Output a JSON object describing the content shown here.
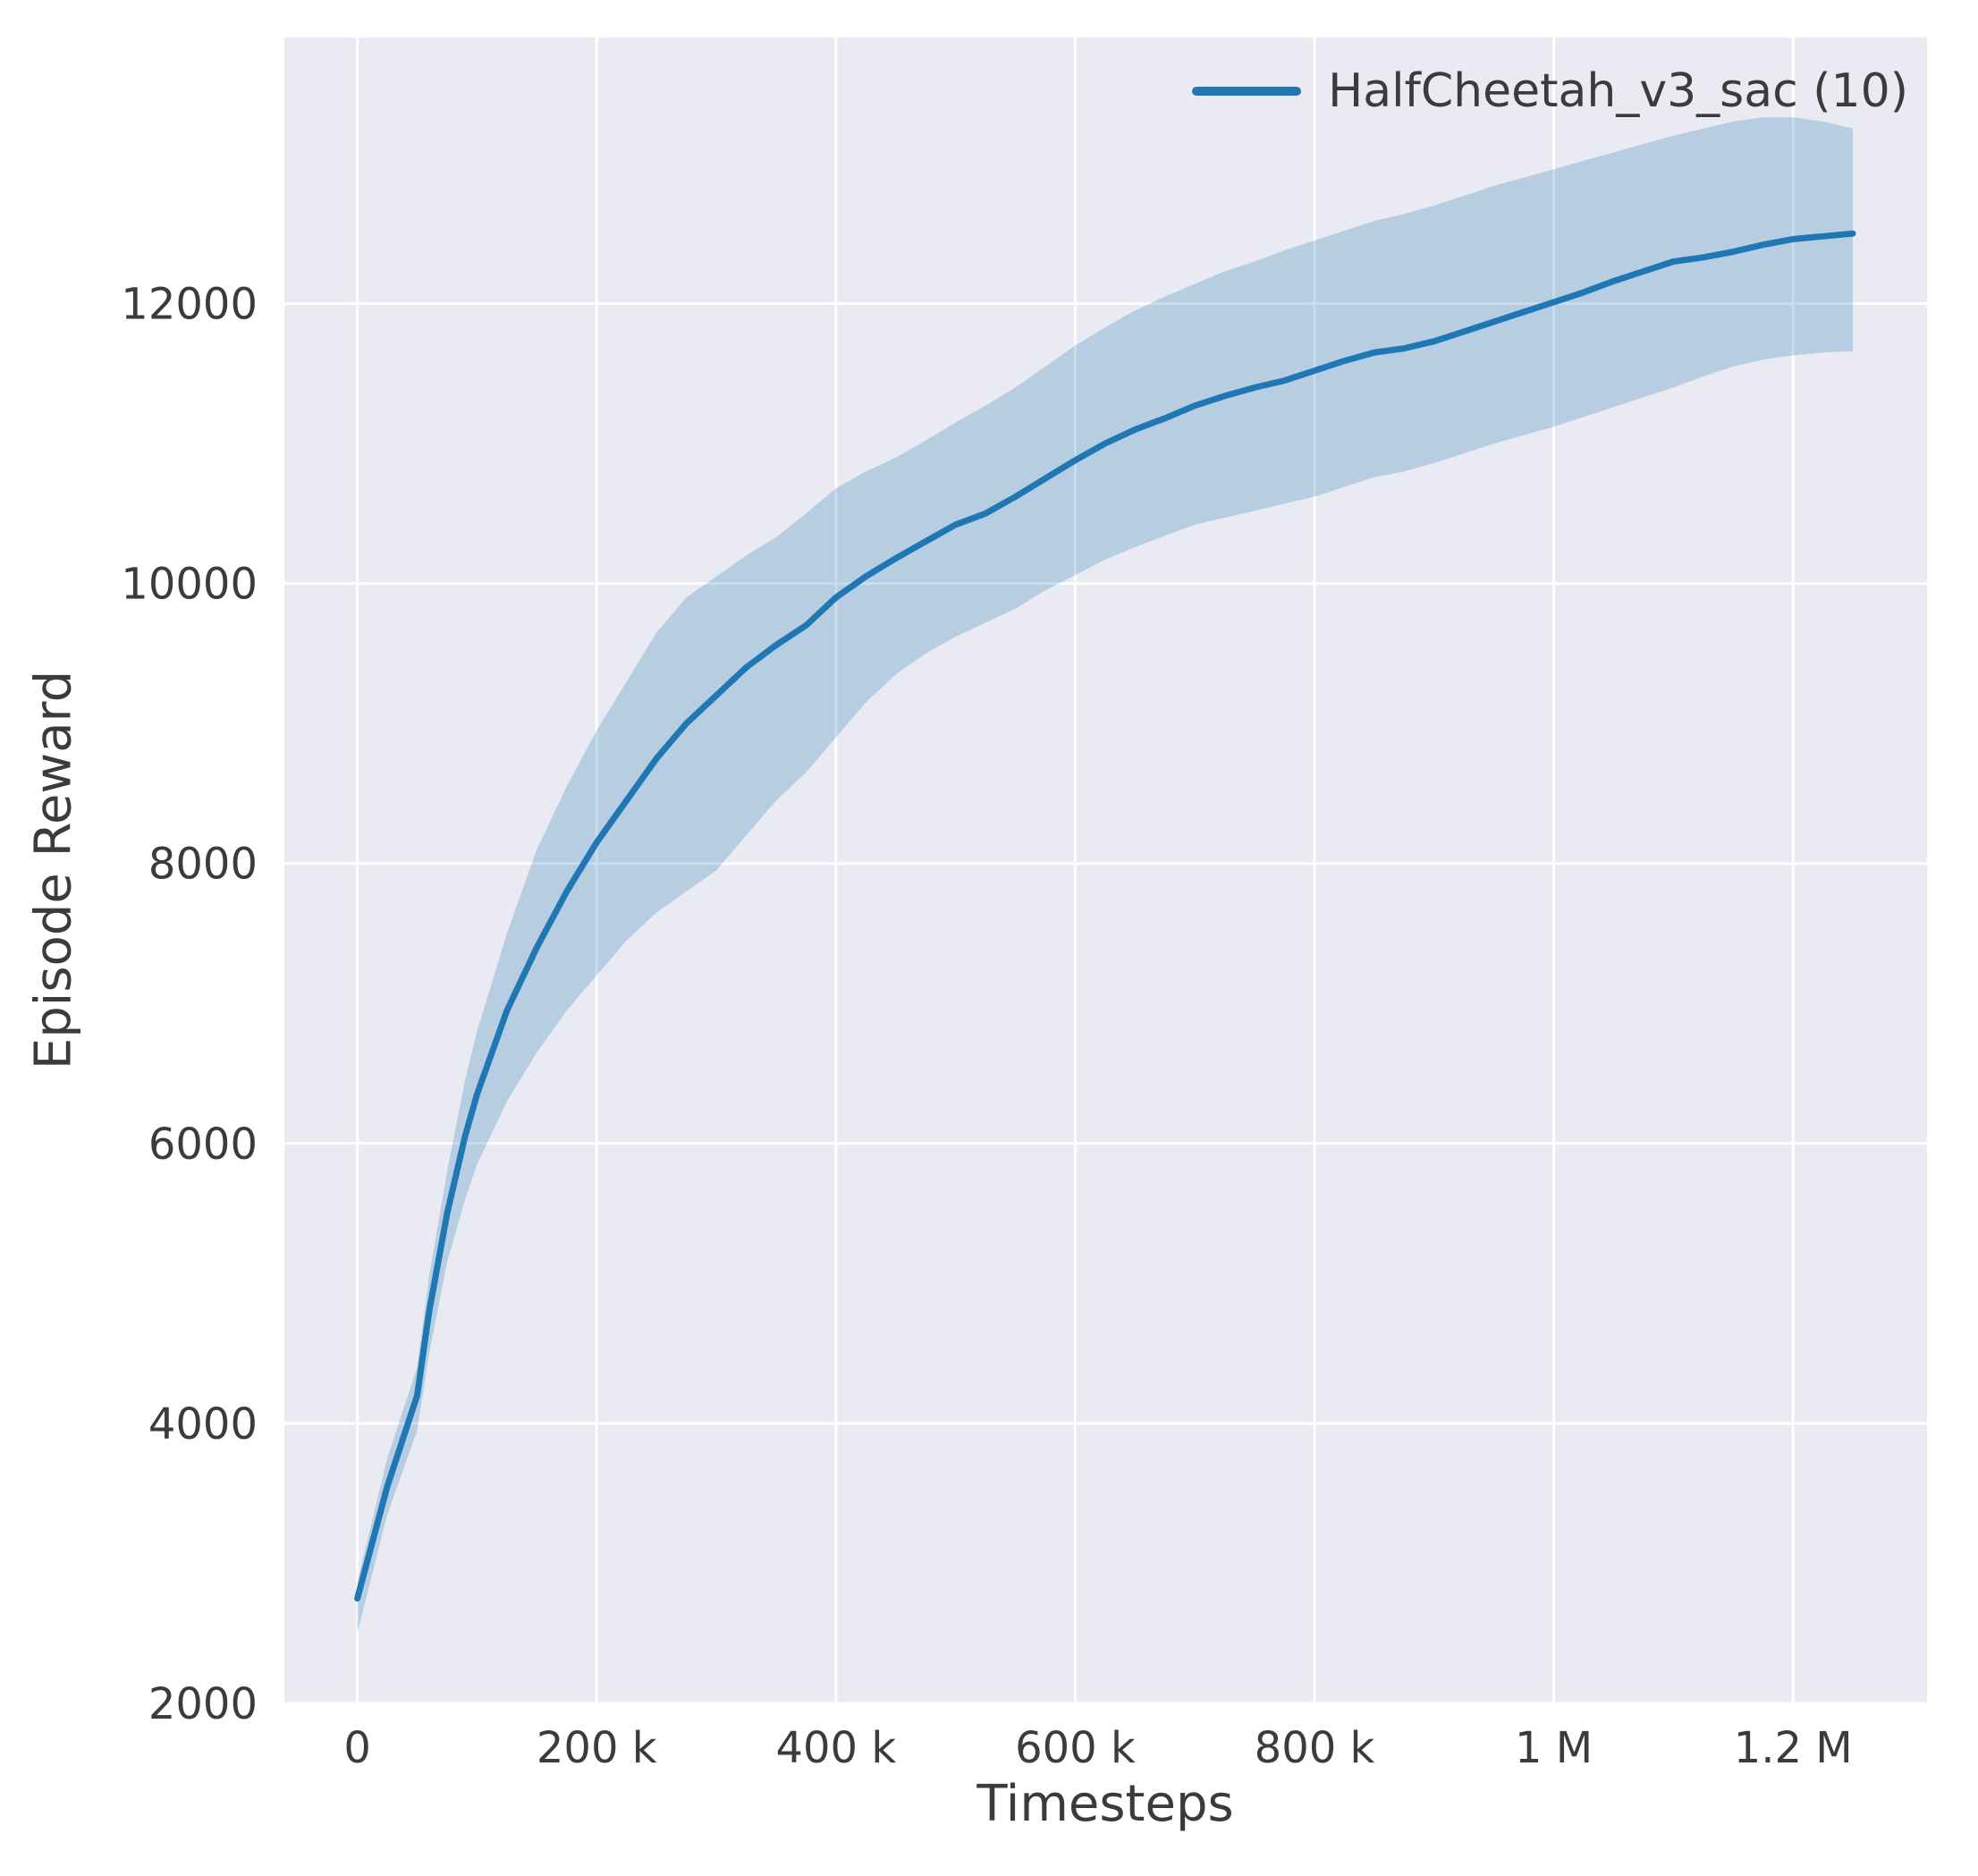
{
  "figure": {
    "background": "#ffffff"
  },
  "chart_data": {
    "type": "line",
    "title": "",
    "xlabel": "Timesteps",
    "ylabel": "Episode Reward",
    "xlim": [
      -61000,
      1312000
    ],
    "ylim": [
      2000,
      13900
    ],
    "grid": true,
    "legend_position": "upper right",
    "xticks": [
      {
        "value": 0,
        "label": "0"
      },
      {
        "value": 200000,
        "label": "200 k"
      },
      {
        "value": 400000,
        "label": "400 k"
      },
      {
        "value": 600000,
        "label": "600 k"
      },
      {
        "value": 800000,
        "label": "800 k"
      },
      {
        "value": 1000000,
        "label": "1 M"
      },
      {
        "value": 1200000,
        "label": "1.2 M"
      }
    ],
    "yticks": [
      {
        "value": 2000,
        "label": "2000"
      },
      {
        "value": 4000,
        "label": "4000"
      },
      {
        "value": 6000,
        "label": "6000"
      },
      {
        "value": 8000,
        "label": "8000"
      },
      {
        "value": 10000,
        "label": "10000"
      },
      {
        "value": 12000,
        "label": "12000"
      }
    ],
    "colors": {
      "line": "#1f77b4",
      "band": "#1f77b4",
      "band_opacity": 0.25,
      "background": "#eaeaf2",
      "grid": "#ffffff",
      "text": "#3b3b3b"
    },
    "series": [
      {
        "name": "HalfCheetah_v3_sac (10)",
        "x": [
          0,
          25000,
          50000,
          60000,
          75000,
          90000,
          100000,
          125000,
          150000,
          175000,
          200000,
          225000,
          250000,
          275000,
          300000,
          325000,
          350000,
          375000,
          400000,
          425000,
          450000,
          475000,
          500000,
          525000,
          550000,
          575000,
          600000,
          625000,
          650000,
          675000,
          700000,
          725000,
          750000,
          775000,
          800000,
          825000,
          850000,
          875000,
          900000,
          925000,
          950000,
          975000,
          1000000,
          1025000,
          1050000,
          1075000,
          1100000,
          1125000,
          1150000,
          1175000,
          1200000,
          1225000,
          1250000
        ],
        "mean": [
          2750,
          3550,
          4200,
          4800,
          5500,
          6050,
          6350,
          6950,
          7400,
          7800,
          8150,
          8450,
          8750,
          9000,
          9200,
          9400,
          9560,
          9700,
          9900,
          10050,
          10180,
          10300,
          10420,
          10500,
          10620,
          10750,
          10880,
          11000,
          11100,
          11180,
          11270,
          11340,
          11400,
          11450,
          11520,
          11590,
          11650,
          11680,
          11730,
          11800,
          11870,
          11940,
          12010,
          12080,
          12160,
          12230,
          12300,
          12330,
          12370,
          12420,
          12460,
          12480,
          12500
        ],
        "lower": [
          2500,
          3350,
          3950,
          4500,
          5150,
          5600,
          5850,
          6300,
          6650,
          6950,
          7200,
          7450,
          7650,
          7800,
          7950,
          8200,
          8450,
          8650,
          8900,
          9150,
          9350,
          9500,
          9620,
          9720,
          9820,
          9950,
          10060,
          10170,
          10260,
          10340,
          10420,
          10470,
          10520,
          10570,
          10620,
          10690,
          10760,
          10800,
          10860,
          10930,
          11000,
          11060,
          11120,
          11190,
          11260,
          11330,
          11400,
          11480,
          11550,
          11600,
          11630,
          11650,
          11660
        ],
        "upper": [
          2870,
          3750,
          4400,
          5050,
          5800,
          6450,
          6800,
          7500,
          8100,
          8550,
          8950,
          9300,
          9650,
          9900,
          10050,
          10200,
          10330,
          10500,
          10680,
          10800,
          10900,
          11020,
          11150,
          11270,
          11400,
          11550,
          11700,
          11830,
          11950,
          12050,
          12140,
          12230,
          12300,
          12380,
          12450,
          12520,
          12590,
          12640,
          12700,
          12770,
          12840,
          12900,
          12960,
          13020,
          13080,
          13140,
          13200,
          13250,
          13300,
          13330,
          13330,
          13300,
          13250
        ]
      }
    ]
  }
}
